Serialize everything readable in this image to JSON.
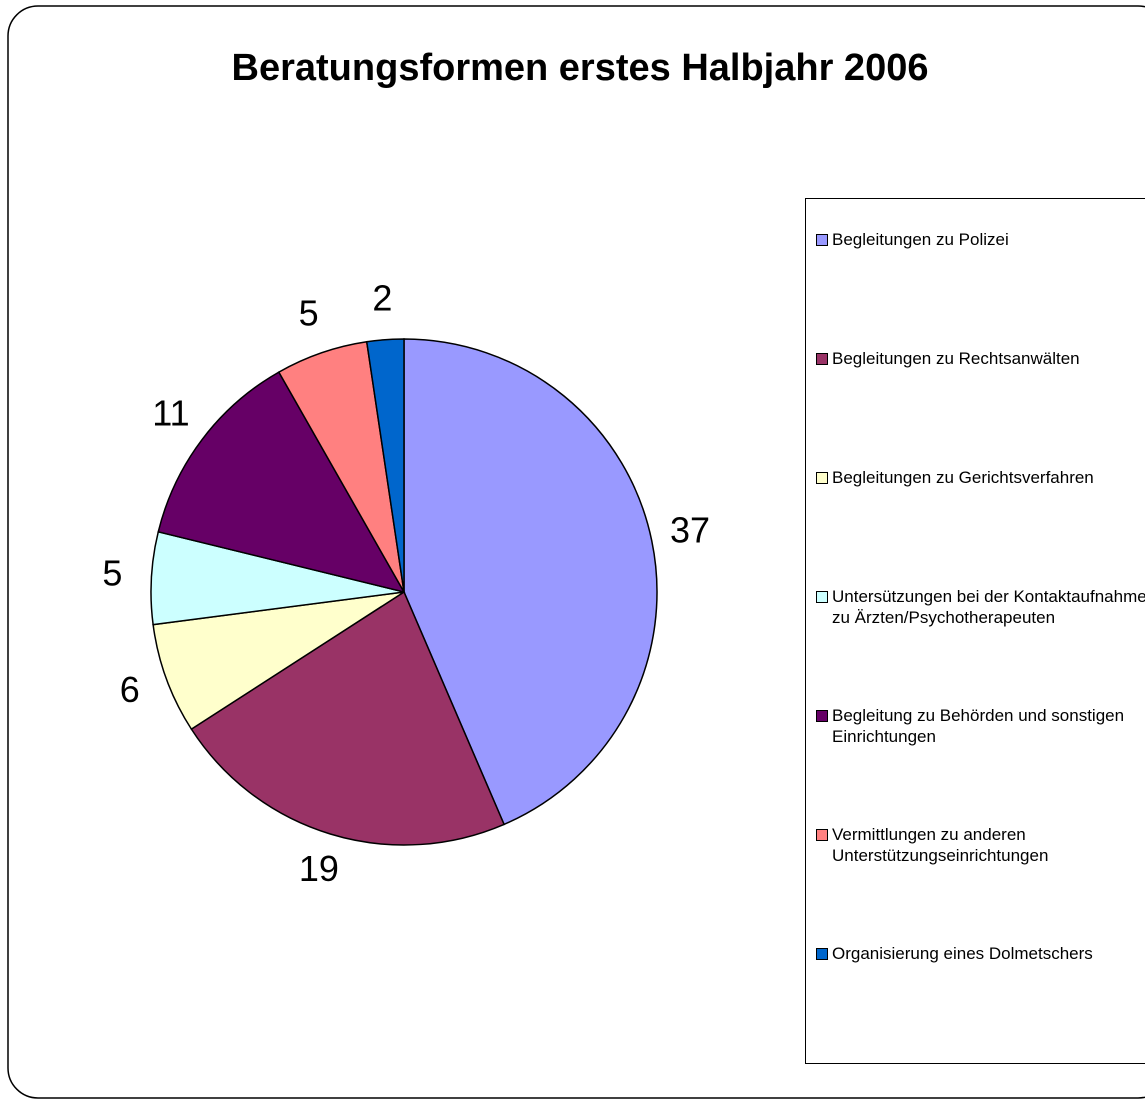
{
  "chart_data": {
    "type": "pie",
    "title": "Beratungsformen erstes Halbjahr 2006",
    "categories": [
      "Begleitungen zu Polizei",
      "Begleitungen zu Rechtsanwälten",
      "Begleitungen zu Gerichtsverfahren",
      "Untersützungen bei der Kontaktaufnahme zu Ärzten/Psychotherapeuten",
      "Begleitung zu Behörden und sonstigen Einrichtungen",
      "Vermittlungen zu anderen Unterstützungseinrichtungen",
      "Organisierung eines Dolmetschers"
    ],
    "values": [
      37,
      19,
      6,
      5,
      11,
      5,
      2
    ],
    "colors": [
      "#9999ff",
      "#993366",
      "#ffffcc",
      "#ccffff",
      "#660066",
      "#ff8080",
      "#0066cc"
    ],
    "legend": "right"
  }
}
